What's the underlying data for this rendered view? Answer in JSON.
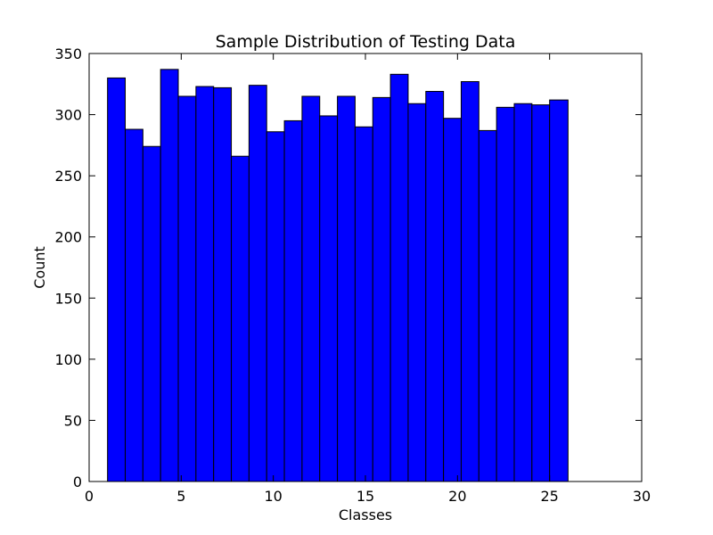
{
  "chart_data": {
    "type": "bar",
    "title": "Sample Distribution of Testing Data",
    "xlabel": "Classes",
    "ylabel": "Count",
    "xlim": [
      0,
      30
    ],
    "ylim": [
      0,
      350
    ],
    "xticks": [
      "0",
      "5",
      "10",
      "15",
      "20",
      "25",
      "30"
    ],
    "yticks": [
      "0",
      "50",
      "100",
      "150",
      "200",
      "250",
      "300",
      "350"
    ],
    "grid": false,
    "bar_color": "#0000ff",
    "edge_color": "#000000",
    "bins": [
      {
        "x0": 1.0,
        "x1": 1.96,
        "value": 330
      },
      {
        "x0": 1.96,
        "x1": 2.92,
        "value": 288
      },
      {
        "x0": 2.92,
        "x1": 3.88,
        "value": 274
      },
      {
        "x0": 3.88,
        "x1": 4.84,
        "value": 337
      },
      {
        "x0": 4.84,
        "x1": 5.8,
        "value": 315
      },
      {
        "x0": 5.8,
        "x1": 6.76,
        "value": 323
      },
      {
        "x0": 6.76,
        "x1": 7.72,
        "value": 322
      },
      {
        "x0": 7.72,
        "x1": 8.68,
        "value": 266
      },
      {
        "x0": 8.68,
        "x1": 9.64,
        "value": 324
      },
      {
        "x0": 9.64,
        "x1": 10.6,
        "value": 286
      },
      {
        "x0": 10.6,
        "x1": 11.56,
        "value": 295
      },
      {
        "x0": 11.56,
        "x1": 12.52,
        "value": 315
      },
      {
        "x0": 12.52,
        "x1": 13.48,
        "value": 299
      },
      {
        "x0": 13.48,
        "x1": 14.44,
        "value": 315
      },
      {
        "x0": 14.44,
        "x1": 15.4,
        "value": 290
      },
      {
        "x0": 15.4,
        "x1": 16.36,
        "value": 314
      },
      {
        "x0": 16.36,
        "x1": 17.32,
        "value": 333
      },
      {
        "x0": 17.32,
        "x1": 18.28,
        "value": 309
      },
      {
        "x0": 18.28,
        "x1": 19.24,
        "value": 319
      },
      {
        "x0": 19.24,
        "x1": 20.2,
        "value": 297
      },
      {
        "x0": 20.2,
        "x1": 21.16,
        "value": 327
      },
      {
        "x0": 21.16,
        "x1": 22.12,
        "value": 287
      },
      {
        "x0": 22.12,
        "x1": 23.08,
        "value": 306
      },
      {
        "x0": 23.08,
        "x1": 24.04,
        "value": 309
      },
      {
        "x0": 24.04,
        "x1": 25.0,
        "value": 308
      },
      {
        "x0": 25.0,
        "x1": 26.0,
        "value": 312
      }
    ]
  }
}
